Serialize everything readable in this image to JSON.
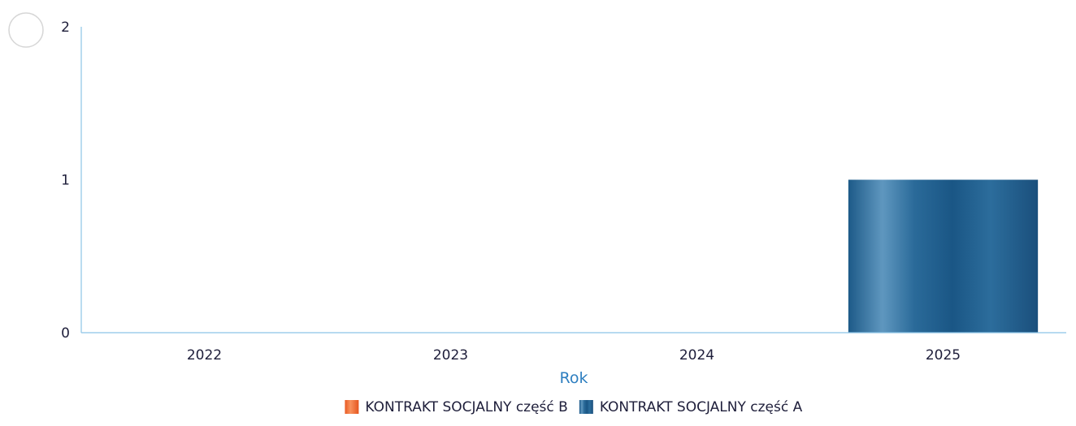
{
  "chart_data": {
    "type": "bar",
    "title": "",
    "xlabel": "Rok",
    "ylabel": "",
    "ylim": [
      0,
      2
    ],
    "yticks": [
      0,
      1,
      2
    ],
    "categories": [
      "2022",
      "2023",
      "2024",
      "2025"
    ],
    "series": [
      {
        "name": "KONTRAKT SOCJALNY część B",
        "color": "#f26a2e",
        "values": [
          0,
          0,
          0,
          0
        ]
      },
      {
        "name": "KONTRAKT SOCJALNY część A",
        "color": "#1f5f8f",
        "values": [
          0,
          0,
          0,
          1
        ]
      }
    ],
    "stacked": true,
    "grid": false,
    "legend_position": "bottom-center"
  }
}
